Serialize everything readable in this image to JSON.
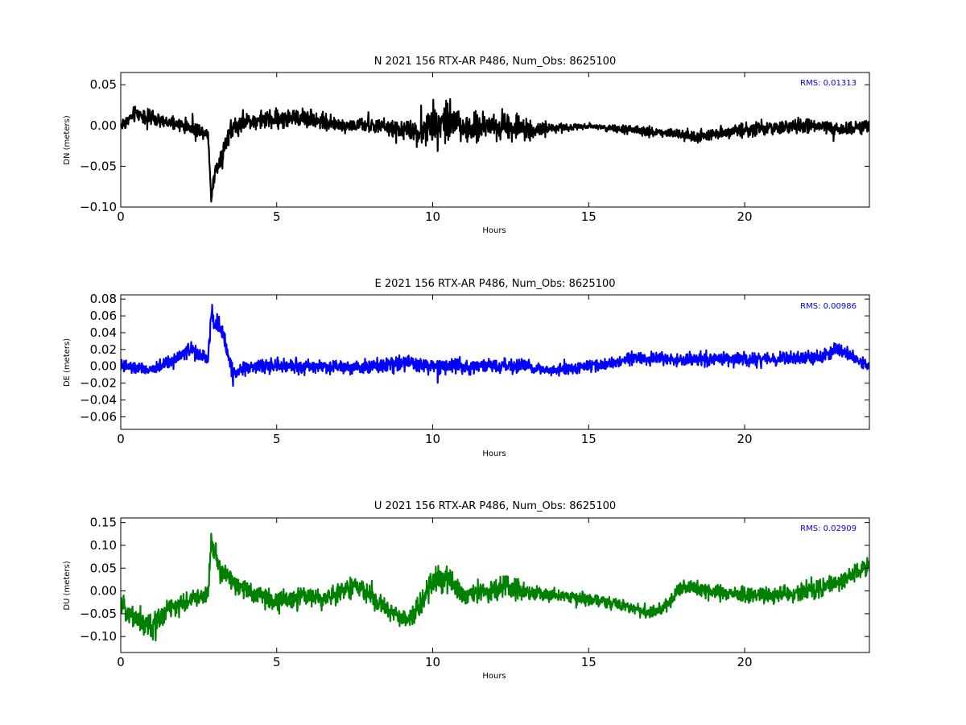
{
  "chart_data": [
    {
      "type": "line",
      "title": "N 2021 156 RTX-AR  P486, Num_Obs: 8625100",
      "xlabel": "Hours",
      "ylabel": "DN (meters)",
      "xlim": [
        0,
        24
      ],
      "ylim": [
        -0.1,
        0.065
      ],
      "xticks": [
        0,
        5,
        10,
        15,
        20
      ],
      "yticks": [
        -0.1,
        -0.05,
        0.0,
        0.05
      ],
      "ytick_labels": [
        "−0.10",
        "−0.05",
        "0.00",
        "0.05"
      ],
      "grid": false,
      "legend": "none",
      "rms_text": "RMS:  0.01313",
      "rms_color": "#0000ff",
      "series": [
        {
          "color": "#000000",
          "x": [
            0,
            0.5,
            1,
            1.5,
            2,
            2.5,
            2.8,
            2.9,
            3.0,
            3.2,
            3.5,
            4,
            5,
            6,
            7,
            8,
            9,
            9.5,
            10,
            10.5,
            10.8,
            11,
            12,
            12.5,
            13,
            13.5,
            14,
            15,
            16,
            17,
            18,
            18.5,
            19,
            20,
            21,
            22,
            23,
            24
          ],
          "center": [
            0.0,
            0.015,
            0.008,
            0.003,
            0.0,
            -0.005,
            -0.01,
            -0.09,
            -0.06,
            -0.04,
            -0.005,
            0.005,
            0.008,
            0.01,
            0.0,
            0.0,
            -0.005,
            -0.01,
            0.0,
            0.01,
            0.005,
            -0.005,
            0.0,
            0.0,
            -0.005,
            -0.005,
            -0.003,
            0.0,
            -0.005,
            -0.008,
            -0.01,
            -0.015,
            -0.01,
            -0.005,
            -0.003,
            0.0,
            -0.005,
            0.0
          ],
          "amp": [
            0.012,
            0.014,
            0.013,
            0.012,
            0.012,
            0.012,
            0.012,
            0.01,
            0.015,
            0.018,
            0.018,
            0.013,
            0.018,
            0.016,
            0.012,
            0.012,
            0.016,
            0.02,
            0.035,
            0.04,
            0.035,
            0.022,
            0.025,
            0.028,
            0.018,
            0.012,
            0.008,
            0.005,
            0.007,
            0.009,
            0.01,
            0.012,
            0.01,
            0.012,
            0.013,
            0.013,
            0.012,
            0.012
          ]
        }
      ]
    },
    {
      "type": "line",
      "title": "E 2021 156 RTX-AR  P486, Num_Obs: 8625100",
      "xlabel": "Hours",
      "ylabel": "DE (meters)",
      "xlim": [
        0,
        24
      ],
      "ylim": [
        -0.075,
        0.085
      ],
      "xticks": [
        0,
        5,
        10,
        15,
        20
      ],
      "yticks": [
        -0.06,
        -0.04,
        -0.02,
        0.0,
        0.02,
        0.04,
        0.06,
        0.08
      ],
      "ytick_labels": [
        "−0.06",
        "−0.04",
        "−0.02",
        "0.00",
        "0.02",
        "0.04",
        "0.06",
        "0.08"
      ],
      "grid": false,
      "legend": "none",
      "rms_text": "RMS:  0.00986",
      "rms_color": "#0000ff",
      "series": [
        {
          "color": "#0000ff",
          "x": [
            0,
            1,
            1.5,
            2,
            2.2,
            2.6,
            2.8,
            2.9,
            3.1,
            3.3,
            3.6,
            4,
            5,
            6,
            7,
            8,
            9,
            10,
            11,
            12,
            13,
            13.3,
            14,
            15,
            16,
            16.5,
            17,
            18,
            19,
            20,
            21,
            22,
            22.5,
            23,
            23.5,
            24
          ],
          "center": [
            0.0,
            -0.005,
            0.005,
            0.015,
            0.02,
            0.012,
            0.01,
            0.06,
            0.05,
            0.035,
            -0.01,
            0.0,
            0.0,
            0.0,
            0.0,
            0.0,
            0.005,
            0.0,
            0.0,
            0.0,
            0.0,
            -0.003,
            -0.005,
            0.0,
            0.005,
            0.01,
            0.008,
            0.008,
            0.008,
            0.008,
            0.008,
            0.01,
            0.012,
            0.02,
            0.01,
            0.0
          ],
          "amp": [
            0.012,
            0.01,
            0.01,
            0.012,
            0.013,
            0.012,
            0.012,
            0.018,
            0.018,
            0.015,
            0.016,
            0.012,
            0.012,
            0.012,
            0.012,
            0.012,
            0.014,
            0.014,
            0.012,
            0.012,
            0.012,
            0.01,
            0.01,
            0.01,
            0.012,
            0.012,
            0.012,
            0.012,
            0.012,
            0.012,
            0.012,
            0.012,
            0.012,
            0.012,
            0.01,
            0.01
          ]
        }
      ]
    },
    {
      "type": "line",
      "title": "U 2021 156 RTX-AR  P486, Num_Obs: 8625100",
      "xlabel": "Hours",
      "ylabel": "DU (meters)",
      "xlim": [
        0,
        24
      ],
      "ylim": [
        -0.135,
        0.16
      ],
      "xticks": [
        0,
        5,
        10,
        15,
        20
      ],
      "yticks": [
        -0.1,
        -0.05,
        0.0,
        0.05,
        0.1,
        0.15
      ],
      "ytick_labels": [
        "−0.10",
        "−0.05",
        "0.00",
        "0.05",
        "0.10",
        "0.15"
      ],
      "grid": false,
      "legend": "none",
      "rms_text": "RMS:  0.02909",
      "rms_color": "#0000ff",
      "series": [
        {
          "color": "#008000",
          "x": [
            0,
            0.5,
            1,
            1.5,
            2,
            2.5,
            2.8,
            2.9,
            3.2,
            3.5,
            4,
            4.5,
            5,
            5.5,
            6,
            6.5,
            7,
            7.5,
            8,
            8.5,
            9,
            9.3,
            9.6,
            10,
            10.5,
            11,
            12,
            12.5,
            13,
            13.5,
            14,
            15,
            16,
            16.5,
            17,
            17.5,
            18,
            19,
            20,
            21,
            22,
            23,
            23.5,
            24
          ],
          "center": [
            -0.03,
            -0.06,
            -0.08,
            -0.04,
            -0.03,
            -0.01,
            -0.01,
            0.11,
            0.04,
            0.03,
            0.0,
            -0.01,
            -0.02,
            -0.02,
            -0.01,
            -0.02,
            0.0,
            0.01,
            -0.01,
            -0.04,
            -0.06,
            -0.06,
            -0.03,
            0.02,
            0.03,
            -0.01,
            0.0,
            0.01,
            0.0,
            -0.01,
            -0.01,
            -0.02,
            -0.03,
            -0.04,
            -0.05,
            -0.03,
            0.01,
            0.0,
            -0.01,
            -0.01,
            0.0,
            0.02,
            0.04,
            0.05
          ],
          "amp": [
            0.03,
            0.035,
            0.04,
            0.035,
            0.03,
            0.03,
            0.03,
            0.035,
            0.035,
            0.035,
            0.03,
            0.03,
            0.035,
            0.035,
            0.03,
            0.03,
            0.03,
            0.03,
            0.03,
            0.03,
            0.03,
            0.03,
            0.035,
            0.045,
            0.04,
            0.035,
            0.035,
            0.035,
            0.03,
            0.025,
            0.02,
            0.02,
            0.02,
            0.02,
            0.02,
            0.02,
            0.025,
            0.025,
            0.025,
            0.025,
            0.03,
            0.03,
            0.03,
            0.03
          ]
        }
      ]
    }
  ]
}
